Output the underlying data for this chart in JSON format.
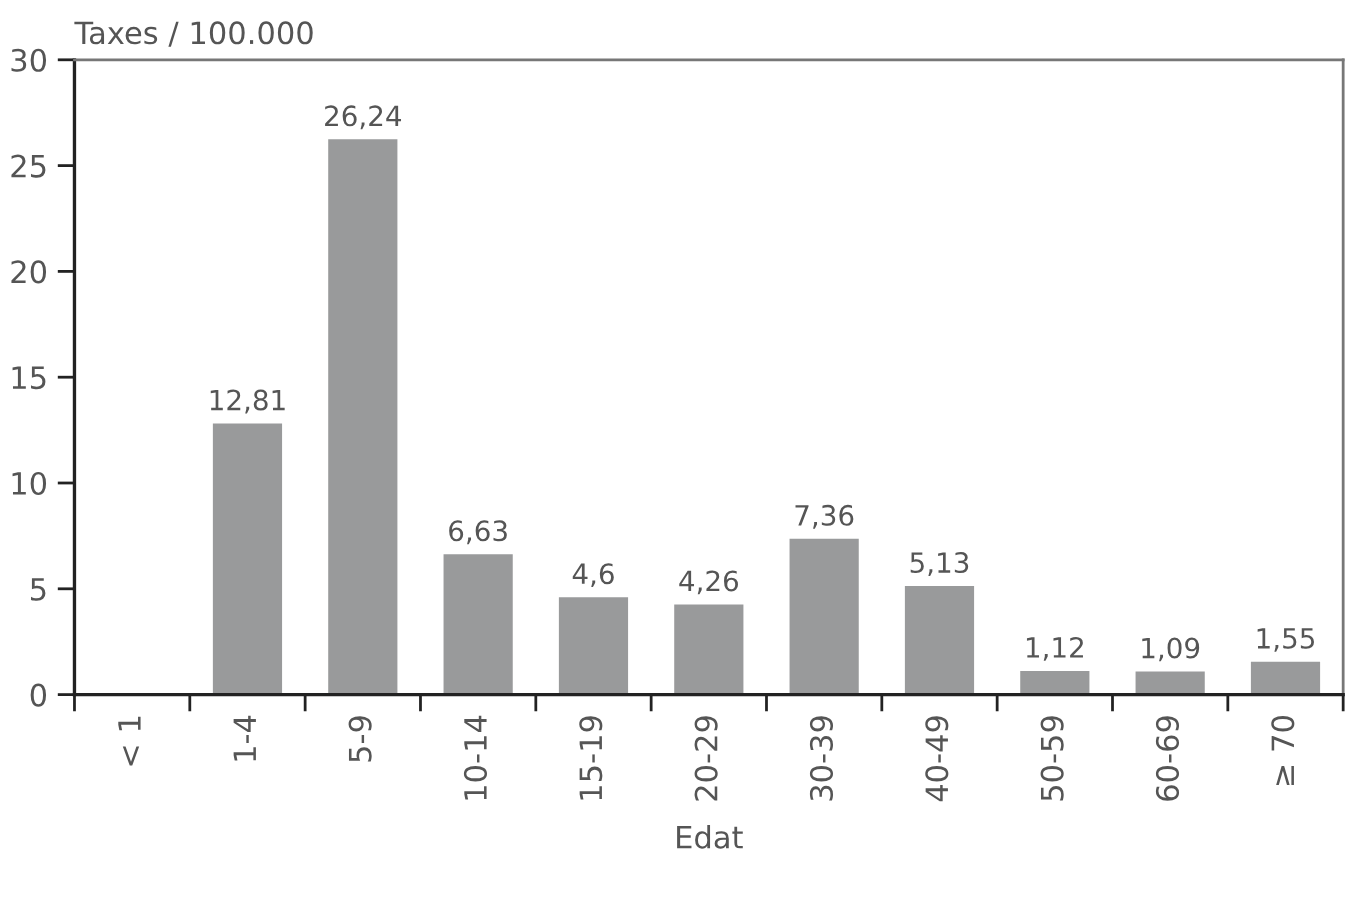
{
  "chart_data": {
    "type": "bar",
    "ylabel": "Taxes / 100.000",
    "xlabel": "Edat",
    "categories": [
      "< 1",
      "1-4",
      "5-9",
      "10-14",
      "15-19",
      "20-29",
      "30-39",
      "40-49",
      "50-59",
      "60-69",
      "≥ 70"
    ],
    "values": [
      null,
      12.81,
      26.24,
      6.63,
      4.6,
      4.26,
      7.36,
      5.13,
      1.12,
      1.09,
      1.55
    ],
    "value_labels": [
      null,
      "12,81",
      "26,24",
      "6,63",
      "4,6",
      "4,26",
      "7,36",
      "5,13",
      "1,12",
      "1,09",
      "1,55"
    ],
    "color": "#999a9b",
    "ylim": [
      0,
      30
    ],
    "yticks": [
      0,
      5,
      10,
      15,
      20,
      25,
      30
    ],
    "grid": false,
    "legend": false
  }
}
